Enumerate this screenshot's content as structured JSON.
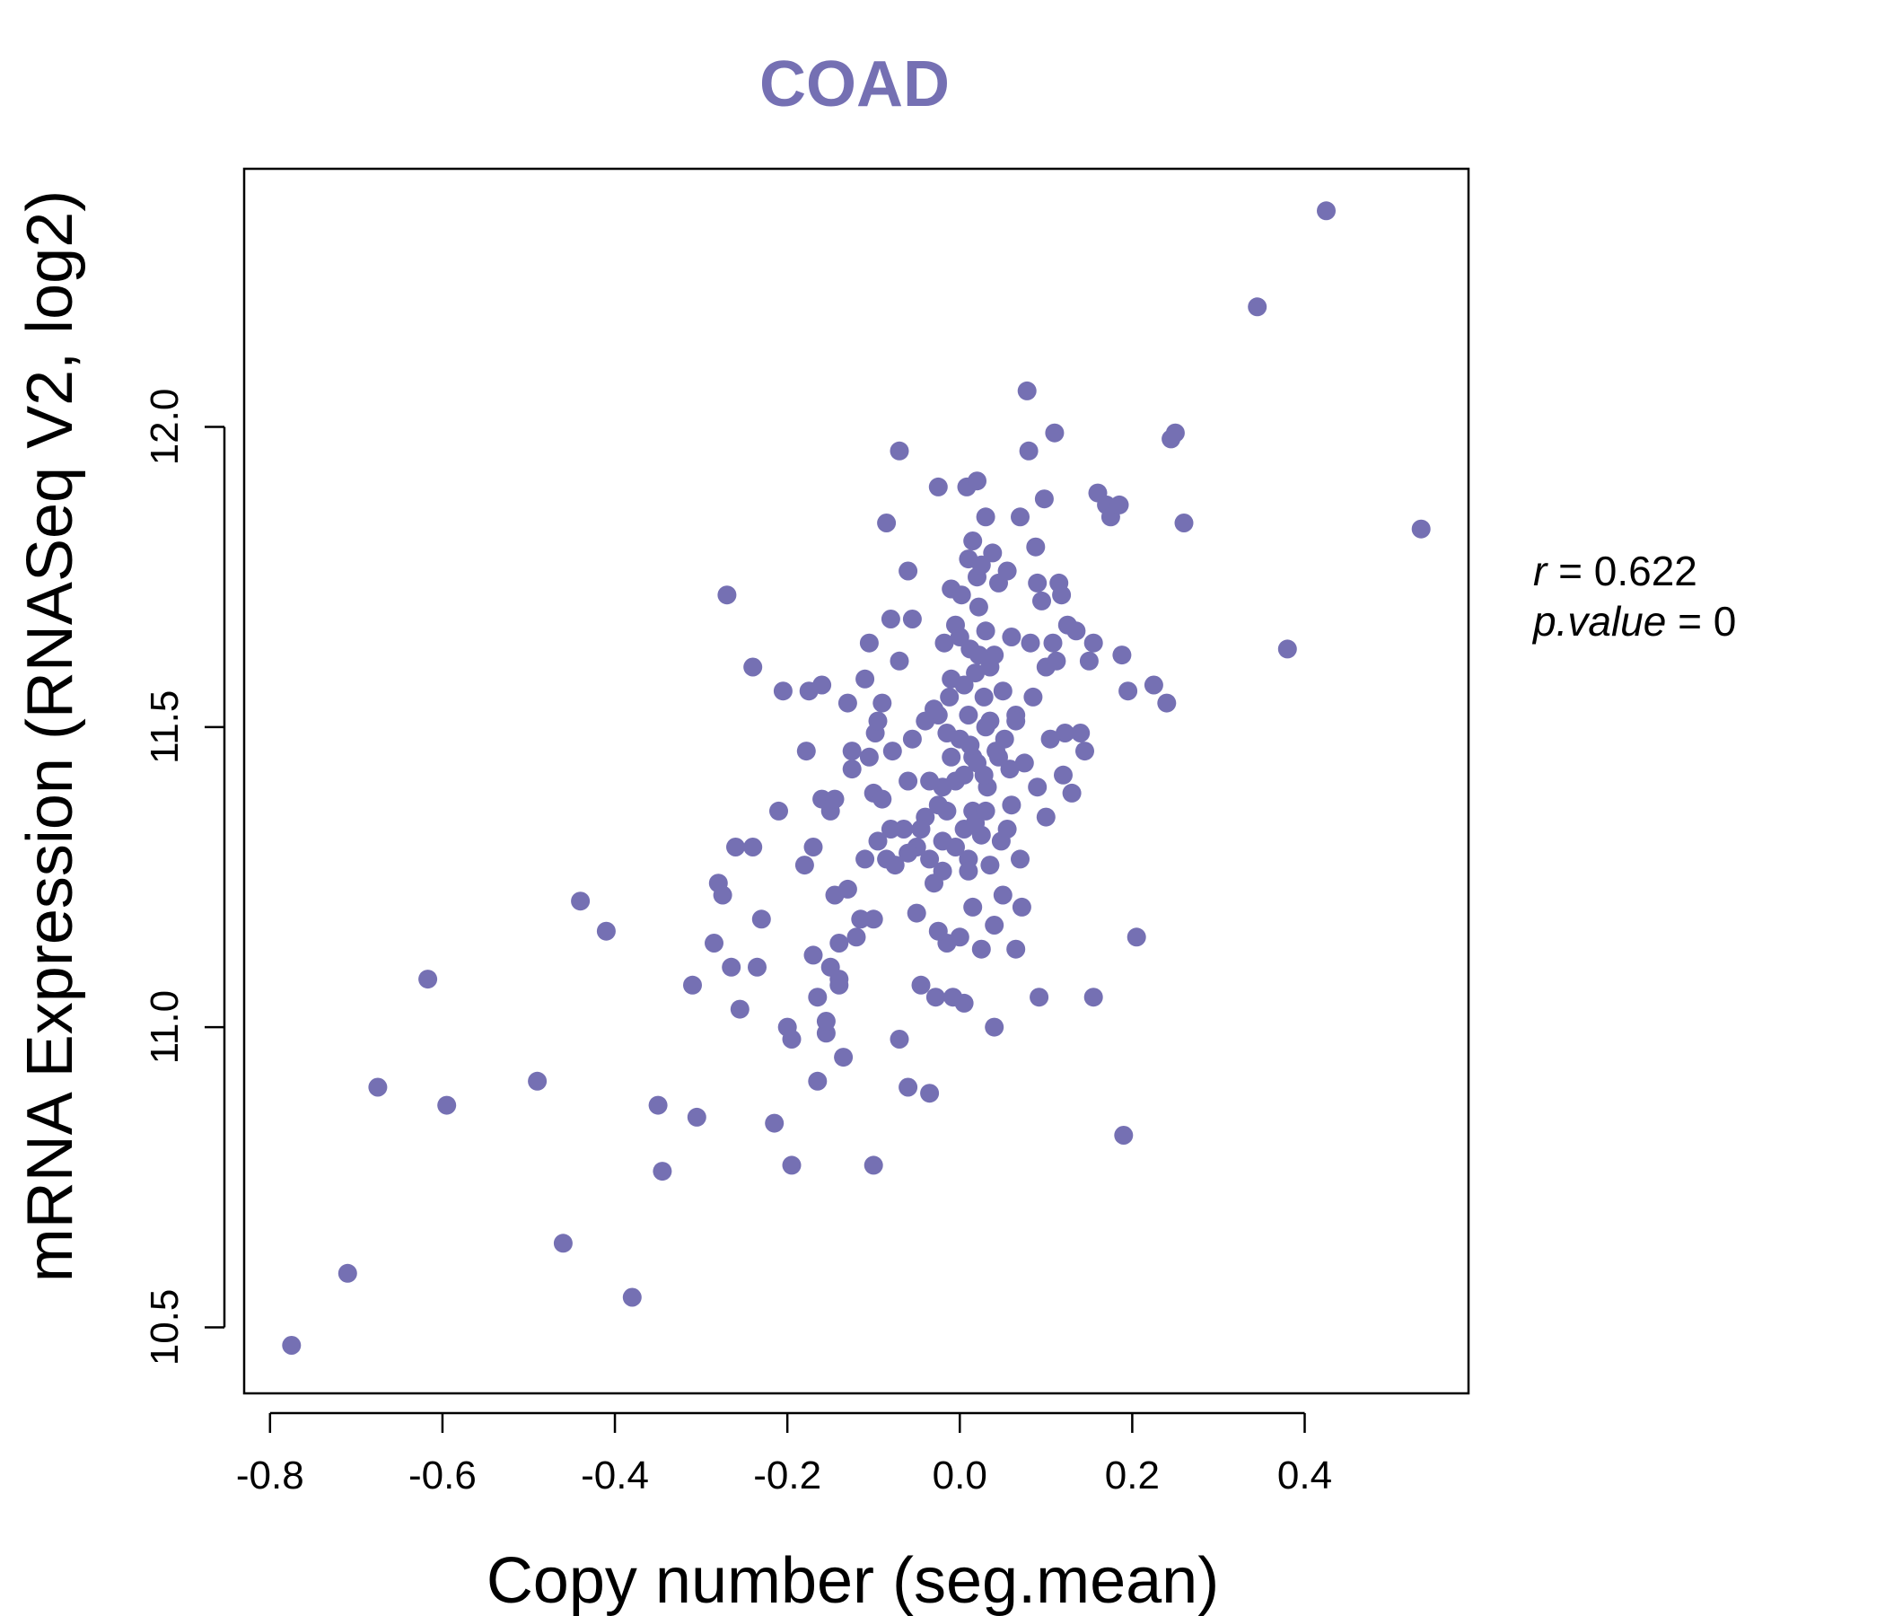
{
  "colors": {
    "accent": "#7570b3",
    "axis": "#000000",
    "background": "#ffffff"
  },
  "chart_data": {
    "type": "scatter",
    "title": "COAD",
    "xlabel": "Copy number (seg.mean)",
    "ylabel": "mRNA Expression (RNASeq V2, log2)",
    "xlim": [
      -0.83,
      0.59
    ],
    "ylim": [
      10.39,
      12.43
    ],
    "x_ticks": [
      -0.8,
      -0.6,
      -0.4,
      -0.2,
      0.0,
      0.2,
      0.4
    ],
    "x_tick_labels": [
      "-0.8",
      "-0.6",
      "-0.4",
      "-0.2",
      "0.0",
      "0.2",
      "0.4"
    ],
    "y_ticks": [
      10.5,
      11.0,
      11.5,
      12.0
    ],
    "y_tick_labels": [
      "10.5",
      "11.0",
      "11.5",
      "12.0"
    ],
    "grid": false,
    "annotation": {
      "r_label": "r",
      "r_value": "0.622",
      "p_label": "p.value",
      "p_value": "0"
    },
    "points": [
      [
        -0.775,
        10.47
      ],
      [
        -0.71,
        10.59
      ],
      [
        -0.675,
        10.9
      ],
      [
        -0.617,
        11.08
      ],
      [
        -0.595,
        10.87
      ],
      [
        -0.49,
        10.91
      ],
      [
        -0.46,
        10.64
      ],
      [
        -0.44,
        11.21
      ],
      [
        -0.41,
        11.16
      ],
      [
        -0.38,
        10.55
      ],
      [
        -0.35,
        10.87
      ],
      [
        -0.345,
        10.76
      ],
      [
        -0.31,
        11.07
      ],
      [
        -0.305,
        10.85
      ],
      [
        -0.285,
        11.14
      ],
      [
        -0.28,
        11.24
      ],
      [
        -0.275,
        11.22
      ],
      [
        -0.27,
        11.72
      ],
      [
        -0.265,
        11.1
      ],
      [
        -0.26,
        11.3
      ],
      [
        -0.255,
        11.03
      ],
      [
        -0.24,
        11.3
      ],
      [
        -0.24,
        11.6
      ],
      [
        -0.235,
        11.1
      ],
      [
        -0.23,
        11.18
      ],
      [
        -0.215,
        10.84
      ],
      [
        -0.21,
        11.36
      ],
      [
        -0.205,
        11.56
      ],
      [
        -0.2,
        11.0
      ],
      [
        -0.195,
        10.98
      ],
      [
        -0.195,
        10.77
      ],
      [
        -0.18,
        11.27
      ],
      [
        -0.178,
        11.46
      ],
      [
        -0.175,
        11.56
      ],
      [
        -0.17,
        11.3
      ],
      [
        -0.17,
        11.12
      ],
      [
        -0.165,
        10.91
      ],
      [
        -0.165,
        11.05
      ],
      [
        -0.16,
        11.38
      ],
      [
        -0.16,
        11.57
      ],
      [
        -0.155,
        10.99
      ],
      [
        -0.155,
        11.01
      ],
      [
        -0.15,
        11.36
      ],
      [
        -0.15,
        11.1
      ],
      [
        -0.145,
        11.38
      ],
      [
        -0.145,
        11.22
      ],
      [
        -0.14,
        11.07
      ],
      [
        -0.14,
        11.08
      ],
      [
        -0.14,
        11.14
      ],
      [
        -0.135,
        10.95
      ],
      [
        -0.13,
        11.23
      ],
      [
        -0.13,
        11.54
      ],
      [
        -0.125,
        11.43
      ],
      [
        -0.125,
        11.46
      ],
      [
        -0.12,
        11.15
      ],
      [
        -0.115,
        11.18
      ],
      [
        -0.11,
        11.58
      ],
      [
        -0.11,
        11.28
      ],
      [
        -0.105,
        11.64
      ],
      [
        -0.105,
        11.45
      ],
      [
        -0.1,
        10.77
      ],
      [
        -0.1,
        11.39
      ],
      [
        -0.1,
        11.18
      ],
      [
        -0.098,
        11.49
      ],
      [
        -0.095,
        11.51
      ],
      [
        -0.095,
        11.31
      ],
      [
        -0.09,
        11.38
      ],
      [
        -0.09,
        11.54
      ],
      [
        -0.085,
        11.28
      ],
      [
        -0.085,
        11.84
      ],
      [
        -0.08,
        11.68
      ],
      [
        -0.078,
        11.46
      ],
      [
        -0.075,
        11.27
      ],
      [
        -0.07,
        11.96
      ],
      [
        -0.07,
        11.61
      ],
      [
        -0.07,
        10.98
      ],
      [
        -0.065,
        11.33
      ],
      [
        -0.06,
        11.76
      ],
      [
        -0.06,
        11.41
      ],
      [
        -0.06,
        10.9
      ],
      [
        -0.055,
        11.48
      ],
      [
        -0.055,
        11.68
      ],
      [
        -0.05,
        11.3
      ],
      [
        -0.05,
        11.19
      ],
      [
        -0.045,
        11.07
      ],
      [
        -0.04,
        11.51
      ],
      [
        -0.04,
        11.35
      ],
      [
        -0.035,
        11.28
      ],
      [
        -0.035,
        10.89
      ],
      [
        -0.03,
        11.24
      ],
      [
        -0.028,
        11.05
      ],
      [
        -0.025,
        11.9
      ],
      [
        -0.025,
        11.37
      ],
      [
        -0.025,
        11.52
      ],
      [
        -0.02,
        11.4
      ],
      [
        -0.02,
        11.31
      ],
      [
        -0.018,
        11.64
      ],
      [
        -0.015,
        11.14
      ],
      [
        -0.015,
        11.36
      ],
      [
        -0.012,
        11.55
      ],
      [
        -0.01,
        11.73
      ],
      [
        -0.01,
        11.45
      ],
      [
        -0.008,
        11.05
      ],
      [
        -0.005,
        11.67
      ],
      [
        -0.005,
        11.3
      ],
      [
        0.0,
        11.15
      ],
      [
        0.0,
        11.48
      ],
      [
        0.0,
        11.65
      ],
      [
        0.005,
        11.04
      ],
      [
        0.005,
        11.33
      ],
      [
        0.005,
        11.42
      ],
      [
        0.008,
        11.9
      ],
      [
        0.01,
        11.78
      ],
      [
        0.01,
        11.52
      ],
      [
        0.01,
        11.28
      ],
      [
        0.012,
        11.63
      ],
      [
        0.015,
        11.2
      ],
      [
        0.015,
        11.45
      ],
      [
        0.015,
        11.36
      ],
      [
        0.018,
        11.59
      ],
      [
        0.02,
        11.91
      ],
      [
        0.02,
        11.75
      ],
      [
        0.02,
        11.44
      ],
      [
        0.022,
        11.7
      ],
      [
        0.025,
        11.13
      ],
      [
        0.025,
        11.32
      ],
      [
        0.028,
        11.55
      ],
      [
        0.03,
        11.85
      ],
      [
        0.03,
        11.66
      ],
      [
        0.03,
        11.5
      ],
      [
        0.032,
        11.4
      ],
      [
        0.035,
        11.27
      ],
      [
        0.035,
        11.6
      ],
      [
        0.038,
        11.79
      ],
      [
        0.04,
        11.0
      ],
      [
        0.04,
        11.17
      ],
      [
        0.04,
        11.62
      ],
      [
        0.045,
        11.74
      ],
      [
        0.045,
        11.45
      ],
      [
        0.048,
        11.31
      ],
      [
        0.05,
        11.56
      ],
      [
        0.05,
        11.22
      ],
      [
        0.052,
        11.48
      ],
      [
        0.055,
        11.76
      ],
      [
        0.055,
        11.33
      ],
      [
        0.06,
        11.37
      ],
      [
        0.06,
        11.65
      ],
      [
        0.065,
        11.52
      ],
      [
        0.065,
        11.13
      ],
      [
        0.07,
        11.28
      ],
      [
        0.07,
        11.85
      ],
      [
        0.072,
        11.2
      ],
      [
        0.075,
        11.44
      ],
      [
        0.078,
        12.06
      ],
      [
        0.08,
        11.96
      ],
      [
        0.082,
        11.64
      ],
      [
        0.085,
        11.55
      ],
      [
        0.088,
        11.8
      ],
      [
        0.09,
        11.74
      ],
      [
        0.09,
        11.4
      ],
      [
        0.092,
        11.05
      ],
      [
        0.095,
        11.71
      ],
      [
        0.098,
        11.88
      ],
      [
        0.1,
        11.6
      ],
      [
        0.1,
        11.35
      ],
      [
        0.105,
        11.48
      ],
      [
        0.108,
        11.64
      ],
      [
        0.11,
        11.99
      ],
      [
        0.112,
        11.61
      ],
      [
        0.115,
        11.74
      ],
      [
        0.118,
        11.72
      ],
      [
        0.12,
        11.42
      ],
      [
        0.122,
        11.49
      ],
      [
        0.125,
        11.67
      ],
      [
        0.13,
        11.39
      ],
      [
        0.135,
        11.66
      ],
      [
        0.14,
        11.49
      ],
      [
        0.145,
        11.46
      ],
      [
        0.15,
        11.61
      ],
      [
        0.155,
        11.64
      ],
      [
        0.155,
        11.05
      ],
      [
        0.16,
        11.89
      ],
      [
        0.17,
        11.87
      ],
      [
        0.175,
        11.85
      ],
      [
        0.185,
        11.87
      ],
      [
        0.188,
        11.62
      ],
      [
        0.19,
        10.82
      ],
      [
        0.195,
        11.56
      ],
      [
        0.205,
        11.15
      ],
      [
        0.225,
        11.57
      ],
      [
        0.24,
        11.54
      ],
      [
        0.245,
        11.98
      ],
      [
        0.25,
        11.99
      ],
      [
        0.26,
        11.84
      ],
      [
        0.345,
        12.2
      ],
      [
        0.38,
        11.63
      ],
      [
        0.425,
        12.36
      ],
      [
        0.535,
        11.83
      ],
      [
        -0.03,
        11.53
      ],
      [
        -0.015,
        11.49
      ],
      [
        -0.005,
        11.41
      ],
      [
        0.005,
        11.57
      ],
      [
        0.012,
        11.47
      ],
      [
        0.018,
        11.34
      ],
      [
        0.022,
        11.62
      ],
      [
        0.028,
        11.42
      ],
      [
        0.035,
        11.51
      ],
      [
        -0.01,
        11.58
      ],
      [
        -0.045,
        11.33
      ],
      [
        -0.02,
        11.26
      ],
      [
        0.01,
        11.26
      ],
      [
        0.03,
        11.36
      ],
      [
        0.042,
        11.46
      ],
      [
        -0.035,
        11.41
      ],
      [
        -0.025,
        11.16
      ],
      [
        0.002,
        11.72
      ],
      [
        0.015,
        11.81
      ],
      [
        0.025,
        11.77
      ],
      [
        -0.08,
        11.33
      ],
      [
        -0.06,
        11.29
      ],
      [
        0.058,
        11.43
      ],
      [
        0.065,
        11.51
      ]
    ]
  }
}
